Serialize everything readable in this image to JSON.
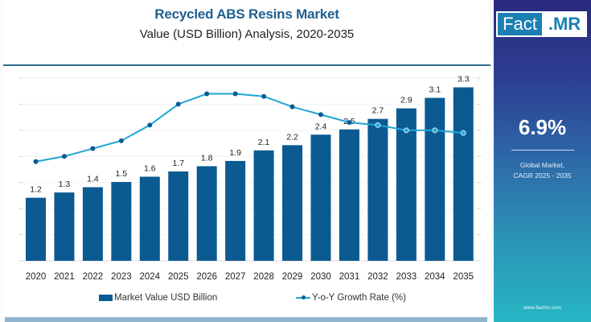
{
  "header": {
    "title": "Recycled ABS Resins Market",
    "subtitle": "Value (USD Billion) Analysis, 2020-2035"
  },
  "brand": {
    "logo_part1": "Fact",
    "logo_part2": ".MR",
    "website": "www.factmr.com"
  },
  "kpi": {
    "value": "6.9%",
    "label_line1": "Global Market,",
    "label_line2": "CAGR 2025 - 2035"
  },
  "colors": {
    "bar": "#0b5a92",
    "line": "#1fa6d6",
    "marker": "#0b5a92",
    "title": "#1f5f8f"
  },
  "chart_data": {
    "type": "bar",
    "title": "Recycled ABS Resins Market",
    "subtitle": "Value (USD Billion) Analysis, 2020-2035",
    "categories": [
      "2020",
      "2021",
      "2022",
      "2023",
      "2024",
      "2025",
      "2026",
      "2027",
      "2028",
      "2029",
      "2030",
      "2031",
      "2032",
      "2033",
      "2034",
      "2035"
    ],
    "series": [
      {
        "name": "Market Value USD Billion",
        "type": "bar",
        "values": [
          1.2,
          1.3,
          1.4,
          1.5,
          1.6,
          1.7,
          1.8,
          1.9,
          2.1,
          2.2,
          2.4,
          2.5,
          2.7,
          2.9,
          3.1,
          3.3
        ],
        "labels": [
          "1.2",
          "1.3",
          "1.4",
          "1.5",
          "1.6",
          "1.7",
          "1.8",
          "1.9",
          "2.1",
          "2.2",
          "2.4",
          "2.5",
          "2.7",
          "2.9",
          "3.1",
          "3.3"
        ]
      },
      {
        "name": "Y-o-Y Growth Rate (%)",
        "type": "line",
        "values": [
          3.8,
          4.0,
          4.3,
          4.6,
          5.2,
          6.0,
          6.4,
          6.4,
          6.3,
          5.9,
          5.6,
          5.3,
          5.2,
          5.0,
          5.0,
          4.9
        ]
      }
    ],
    "ylim_bar": [
      0,
      3.5
    ],
    "ylim_line": [
      0,
      8
    ],
    "xlabel": "",
    "ylabel": "",
    "grid": true,
    "legend": "bottom"
  }
}
